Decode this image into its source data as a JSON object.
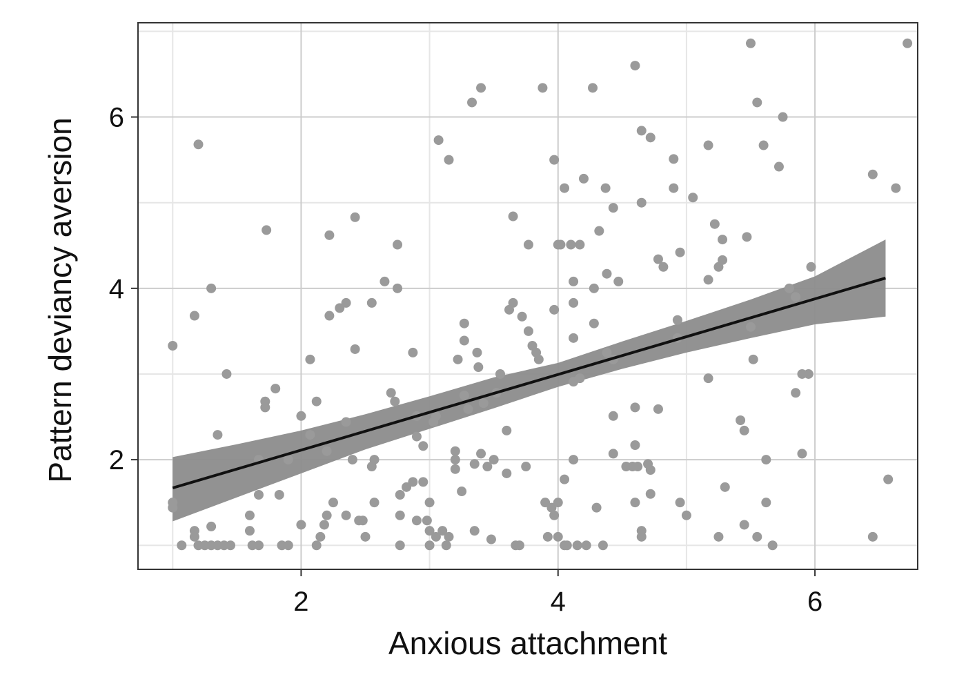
{
  "chart_data": {
    "type": "scatter",
    "xlabel": "Anxious attachment",
    "ylabel": "Pattern deviancy aversion",
    "xlim": [
      0.73,
      6.8
    ],
    "ylim": [
      0.72,
      7.1
    ],
    "x_ticks": [
      2,
      4,
      6
    ],
    "y_ticks": [
      2,
      4,
      6
    ],
    "x_tick_labels": [
      "2",
      "4",
      "6"
    ],
    "y_tick_labels": [
      "2",
      "4",
      "6"
    ],
    "grid": true,
    "colors": {
      "points": "#9a9a9a",
      "fit_line": "#111111",
      "confidence_band": "#8c8c8c",
      "grid_major": "#cccccc",
      "grid_minor": "#e6e6e6",
      "frame": "#333333"
    },
    "fit": {
      "x": [
        1.0,
        6.55
      ],
      "y": [
        1.67,
        4.12
      ]
    },
    "confidence_band": {
      "x": [
        1.0,
        1.5,
        2.0,
        2.5,
        3.0,
        3.5,
        4.0,
        4.5,
        5.0,
        5.5,
        6.0,
        6.55
      ],
      "upper": [
        2.03,
        2.18,
        2.34,
        2.53,
        2.74,
        2.96,
        3.13,
        3.38,
        3.62,
        3.87,
        4.14,
        4.57
      ],
      "lower": [
        1.28,
        1.56,
        1.84,
        2.12,
        2.36,
        2.6,
        2.85,
        3.06,
        3.25,
        3.42,
        3.58,
        3.67
      ]
    },
    "points": [
      [
        1.0,
        3.33
      ],
      [
        1.0,
        1.5
      ],
      [
        1.0,
        1.44
      ],
      [
        1.07,
        1.0
      ],
      [
        1.17,
        3.68
      ],
      [
        1.2,
        5.68
      ],
      [
        1.17,
        1.17
      ],
      [
        1.17,
        1.1
      ],
      [
        1.2,
        1.0
      ],
      [
        1.25,
        1.0
      ],
      [
        1.3,
        1.0
      ],
      [
        1.3,
        1.22
      ],
      [
        1.35,
        1.0
      ],
      [
        1.4,
        1.0
      ],
      [
        1.45,
        1.0
      ],
      [
        1.3,
        4.0
      ],
      [
        1.35,
        2.29
      ],
      [
        1.42,
        3.0
      ],
      [
        1.6,
        1.35
      ],
      [
        1.6,
        1.17
      ],
      [
        1.62,
        1.0
      ],
      [
        1.67,
        1.0
      ],
      [
        1.67,
        1.59
      ],
      [
        1.67,
        2.0
      ],
      [
        1.73,
        4.68
      ],
      [
        1.72,
        2.68
      ],
      [
        1.72,
        2.61
      ],
      [
        1.8,
        2.83
      ],
      [
        1.83,
        1.59
      ],
      [
        1.85,
        1.0
      ],
      [
        1.9,
        1.0
      ],
      [
        1.9,
        2.0
      ],
      [
        2.0,
        1.24
      ],
      [
        2.0,
        2.51
      ],
      [
        2.07,
        3.17
      ],
      [
        2.07,
        2.29
      ],
      [
        2.12,
        2.68
      ],
      [
        2.12,
        1.0
      ],
      [
        2.15,
        1.1
      ],
      [
        2.18,
        1.24
      ],
      [
        2.2,
        1.35
      ],
      [
        2.2,
        2.1
      ],
      [
        2.22,
        4.62
      ],
      [
        2.22,
        3.68
      ],
      [
        2.25,
        1.5
      ],
      [
        2.3,
        3.77
      ],
      [
        2.35,
        3.83
      ],
      [
        2.35,
        2.44
      ],
      [
        2.35,
        1.35
      ],
      [
        2.4,
        2.0
      ],
      [
        2.42,
        4.83
      ],
      [
        2.42,
        3.29
      ],
      [
        2.45,
        1.29
      ],
      [
        2.48,
        1.29
      ],
      [
        2.5,
        1.1
      ],
      [
        2.55,
        3.83
      ],
      [
        2.55,
        1.92
      ],
      [
        2.57,
        2.0
      ],
      [
        2.57,
        1.5
      ],
      [
        2.65,
        4.08
      ],
      [
        2.7,
        2.78
      ],
      [
        2.73,
        2.68
      ],
      [
        2.75,
        4.51
      ],
      [
        2.75,
        4.0
      ],
      [
        2.77,
        1.35
      ],
      [
        2.77,
        1.59
      ],
      [
        2.77,
        1.0
      ],
      [
        2.82,
        1.68
      ],
      [
        2.87,
        1.74
      ],
      [
        2.87,
        3.25
      ],
      [
        2.9,
        2.51
      ],
      [
        2.9,
        2.27
      ],
      [
        2.9,
        1.29
      ],
      [
        2.95,
        1.74
      ],
      [
        2.95,
        2.16
      ],
      [
        2.98,
        1.29
      ],
      [
        3.0,
        1.17
      ],
      [
        3.0,
        1.0
      ],
      [
        3.0,
        1.5
      ],
      [
        3.03,
        2.44
      ],
      [
        3.05,
        1.1
      ],
      [
        3.05,
        2.51
      ],
      [
        3.07,
        5.73
      ],
      [
        3.1,
        1.17
      ],
      [
        3.13,
        1.0
      ],
      [
        3.15,
        1.1
      ],
      [
        3.15,
        5.5
      ],
      [
        3.2,
        2.1
      ],
      [
        3.2,
        2.0
      ],
      [
        3.2,
        1.89
      ],
      [
        3.22,
        3.17
      ],
      [
        3.25,
        1.63
      ],
      [
        3.27,
        3.59
      ],
      [
        3.27,
        3.39
      ],
      [
        3.27,
        2.75
      ],
      [
        3.3,
        2.59
      ],
      [
        3.33,
        6.17
      ],
      [
        3.35,
        1.17
      ],
      [
        3.35,
        1.95
      ],
      [
        3.37,
        3.25
      ],
      [
        3.38,
        3.08
      ],
      [
        3.4,
        6.34
      ],
      [
        3.4,
        2.07
      ],
      [
        3.42,
        2.66
      ],
      [
        3.45,
        1.92
      ],
      [
        3.48,
        1.07
      ],
      [
        3.5,
        2.0
      ],
      [
        3.52,
        2.78
      ],
      [
        3.55,
        3.0
      ],
      [
        3.6,
        1.84
      ],
      [
        3.6,
        2.34
      ],
      [
        3.62,
        3.75
      ],
      [
        3.65,
        4.84
      ],
      [
        3.65,
        3.83
      ],
      [
        3.67,
        1.0
      ],
      [
        3.7,
        1.0
      ],
      [
        3.72,
        3.67
      ],
      [
        3.75,
        1.92
      ],
      [
        3.77,
        4.51
      ],
      [
        3.77,
        3.5
      ],
      [
        3.8,
        3.33
      ],
      [
        3.83,
        3.25
      ],
      [
        3.85,
        3.17
      ],
      [
        3.88,
        6.34
      ],
      [
        3.9,
        1.5
      ],
      [
        3.92,
        1.1
      ],
      [
        3.95,
        1.44
      ],
      [
        3.97,
        5.5
      ],
      [
        3.97,
        1.35
      ],
      [
        3.97,
        3.75
      ],
      [
        4.0,
        1.5
      ],
      [
        4.0,
        1.1
      ],
      [
        4.0,
        4.51
      ],
      [
        4.02,
        4.51
      ],
      [
        4.05,
        5.17
      ],
      [
        4.05,
        1.77
      ],
      [
        4.05,
        1.0
      ],
      [
        4.07,
        1.0
      ],
      [
        4.1,
        4.51
      ],
      [
        4.12,
        4.08
      ],
      [
        4.12,
        3.83
      ],
      [
        4.12,
        3.42
      ],
      [
        4.12,
        2.91
      ],
      [
        4.12,
        2.0
      ],
      [
        4.15,
        1.0
      ],
      [
        4.17,
        4.51
      ],
      [
        4.17,
        2.95
      ],
      [
        4.2,
        5.28
      ],
      [
        4.22,
        1.0
      ],
      [
        4.27,
        6.34
      ],
      [
        4.28,
        4.0
      ],
      [
        4.28,
        3.59
      ],
      [
        4.3,
        1.44
      ],
      [
        4.32,
        4.67
      ],
      [
        4.35,
        1.0
      ],
      [
        4.37,
        5.17
      ],
      [
        4.38,
        4.17
      ],
      [
        4.38,
        3.25
      ],
      [
        4.43,
        4.94
      ],
      [
        4.43,
        3.17
      ],
      [
        4.43,
        2.51
      ],
      [
        4.43,
        2.07
      ],
      [
        4.47,
        4.08
      ],
      [
        4.53,
        1.92
      ],
      [
        4.58,
        1.92
      ],
      [
        4.6,
        6.6
      ],
      [
        4.6,
        2.61
      ],
      [
        4.6,
        2.17
      ],
      [
        4.6,
        1.5
      ],
      [
        4.62,
        1.92
      ],
      [
        4.65,
        5.84
      ],
      [
        4.65,
        5.0
      ],
      [
        4.65,
        1.17
      ],
      [
        4.65,
        1.1
      ],
      [
        4.7,
        1.95
      ],
      [
        4.72,
        5.76
      ],
      [
        4.72,
        1.88
      ],
      [
        4.72,
        1.6
      ],
      [
        4.78,
        4.34
      ],
      [
        4.78,
        2.59
      ],
      [
        4.82,
        4.25
      ],
      [
        4.9,
        5.51
      ],
      [
        4.9,
        5.17
      ],
      [
        4.93,
        3.63
      ],
      [
        4.93,
        3.42
      ],
      [
        4.95,
        4.42
      ],
      [
        4.95,
        1.5
      ],
      [
        5.0,
        1.35
      ],
      [
        5.05,
        5.06
      ],
      [
        5.17,
        5.67
      ],
      [
        5.17,
        4.1
      ],
      [
        5.17,
        2.95
      ],
      [
        5.22,
        4.75
      ],
      [
        5.25,
        4.25
      ],
      [
        5.25,
        1.1
      ],
      [
        5.28,
        4.57
      ],
      [
        5.28,
        4.33
      ],
      [
        5.3,
        1.68
      ],
      [
        5.42,
        2.46
      ],
      [
        5.45,
        2.34
      ],
      [
        5.45,
        1.24
      ],
      [
        5.47,
        4.6
      ],
      [
        5.5,
        6.86
      ],
      [
        5.5,
        3.55
      ],
      [
        5.52,
        3.17
      ],
      [
        5.55,
        6.17
      ],
      [
        5.55,
        1.1
      ],
      [
        5.6,
        5.67
      ],
      [
        5.62,
        2.0
      ],
      [
        5.62,
        1.5
      ],
      [
        5.67,
        1.0
      ],
      [
        5.72,
        5.42
      ],
      [
        5.75,
        6.0
      ],
      [
        5.8,
        4.0
      ],
      [
        5.85,
        3.9
      ],
      [
        5.85,
        2.78
      ],
      [
        5.9,
        3.0
      ],
      [
        5.95,
        3.0
      ],
      [
        5.9,
        2.07
      ],
      [
        5.97,
        4.25
      ],
      [
        6.45,
        5.33
      ],
      [
        6.45,
        1.1
      ],
      [
        6.57,
        1.77
      ],
      [
        6.63,
        5.17
      ],
      [
        6.72,
        6.86
      ]
    ]
  }
}
